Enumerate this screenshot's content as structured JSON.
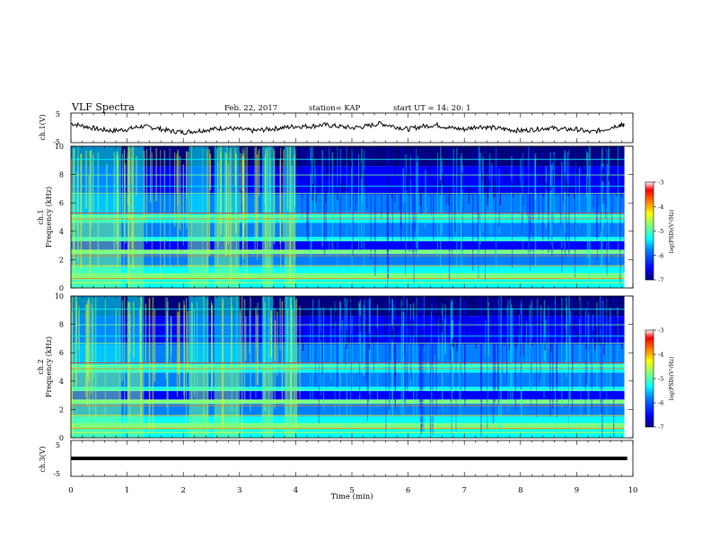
{
  "header": {
    "title": "VLF Spectra",
    "date": "Feb. 22, 2017",
    "station": "station= KAP",
    "start": "start  UT =   14: 20: 1"
  },
  "colors": {
    "trace": "#000000",
    "colormap": [
      "#00007f",
      "#0000ff",
      "#007fff",
      "#00ffff",
      "#7fff7f",
      "#ffff00",
      "#ff7f00",
      "#ff0000",
      "#7f0000"
    ]
  },
  "chart_data": [
    {
      "id": "ch1-volts",
      "type": "line",
      "ylabel": "ch.1(V)",
      "ylim": [
        -5,
        5
      ],
      "yticks": [
        "5",
        "-5"
      ],
      "xlim": [
        0,
        10
      ],
      "description_level": 0,
      "x": [
        0,
        0.25,
        0.5,
        0.75,
        1,
        1.25,
        1.5,
        1.75,
        2,
        2.25,
        2.5,
        2.75,
        3,
        3.25,
        3.5,
        3.75,
        4,
        4.25,
        4.5,
        4.75,
        5,
        5.25,
        5.5,
        5.75,
        6,
        6.25,
        6.5,
        6.75,
        7,
        7.25,
        7.5,
        7.75,
        8,
        8.25,
        8.5,
        8.75,
        9,
        9.25,
        9.5,
        9.75,
        9.85
      ],
      "y": [
        1.5,
        0.5,
        -0.5,
        -1.0,
        -0.5,
        0.5,
        0.0,
        -1.0,
        -1.5,
        -1.0,
        -0.5,
        0.0,
        -0.5,
        -1.0,
        -0.5,
        0.0,
        0.5,
        0.5,
        1.0,
        0.5,
        0.0,
        0.5,
        1.5,
        0.5,
        -0.5,
        0.5,
        1.0,
        0.0,
        -0.5,
        0.5,
        0.0,
        -0.5,
        -1.0,
        -0.5,
        0.0,
        -0.5,
        -0.5,
        -1.5,
        -0.5,
        1.0,
        0.8
      ]
    },
    {
      "id": "ch1-spectrogram",
      "type": "heatmap",
      "ylabel": "ch.1\nFrequency (kHz)",
      "ylim": [
        0,
        10
      ],
      "yticks": [
        "0",
        "2",
        "4",
        "6",
        "8",
        "10"
      ],
      "xlim": [
        0,
        9.85
      ],
      "colorbar": {
        "label": "log(PSD)(V²/Hz)",
        "range": [
          -7,
          -3
        ],
        "ticks": [
          "-3",
          "-4",
          "-5",
          "-6",
          "-7"
        ]
      }
    },
    {
      "id": "ch2-spectrogram",
      "type": "heatmap",
      "ylabel": "ch.2\nFrequency (kHz)",
      "ylim": [
        0,
        10
      ],
      "yticks": [
        "0",
        "2",
        "4",
        "6",
        "8",
        "10"
      ],
      "xlim": [
        0,
        9.85
      ],
      "colorbar": {
        "label": "log(PSD)(V²/Hz)",
        "range": [
          -7,
          -3
        ],
        "ticks": [
          "-3",
          "-4",
          "-5",
          "-6",
          "-7"
        ]
      }
    },
    {
      "id": "ch3-volts",
      "type": "line",
      "ylabel": "ch.3(V)",
      "ylim": [
        -5,
        5
      ],
      "yticks": [
        "5",
        "-5"
      ],
      "xlim": [
        0,
        10
      ],
      "x": [
        0,
        9.9
      ],
      "y": [
        0,
        0
      ]
    }
  ],
  "xaxis": {
    "label": "Time  (min)",
    "ticks": [
      "0",
      "1",
      "2",
      "3",
      "4",
      "5",
      "6",
      "7",
      "8",
      "9",
      "10"
    ]
  }
}
